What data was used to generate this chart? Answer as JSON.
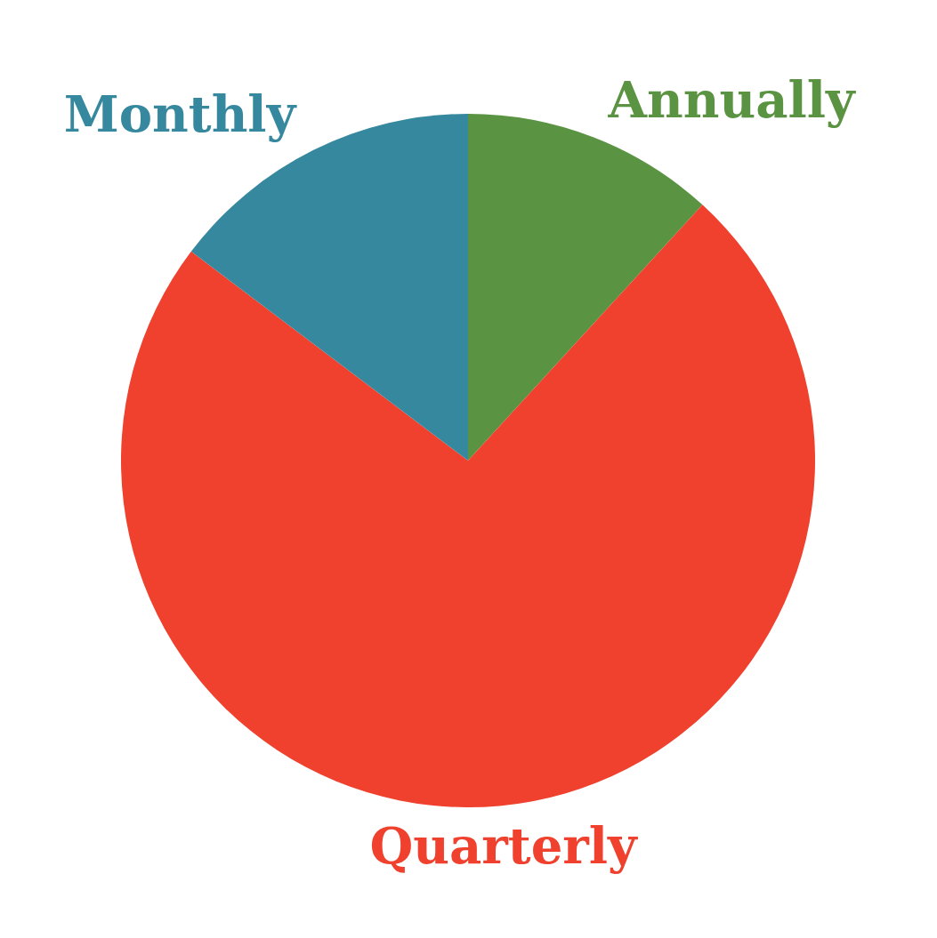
{
  "chart_data": {
    "type": "pie",
    "categories": [
      "Annually",
      "Quarterly",
      "Monthly"
    ],
    "values": [
      11.8,
      73.5,
      14.7
    ],
    "colors": [
      "#5a9341",
      "#ef412d",
      "#36889f"
    ]
  }
}
